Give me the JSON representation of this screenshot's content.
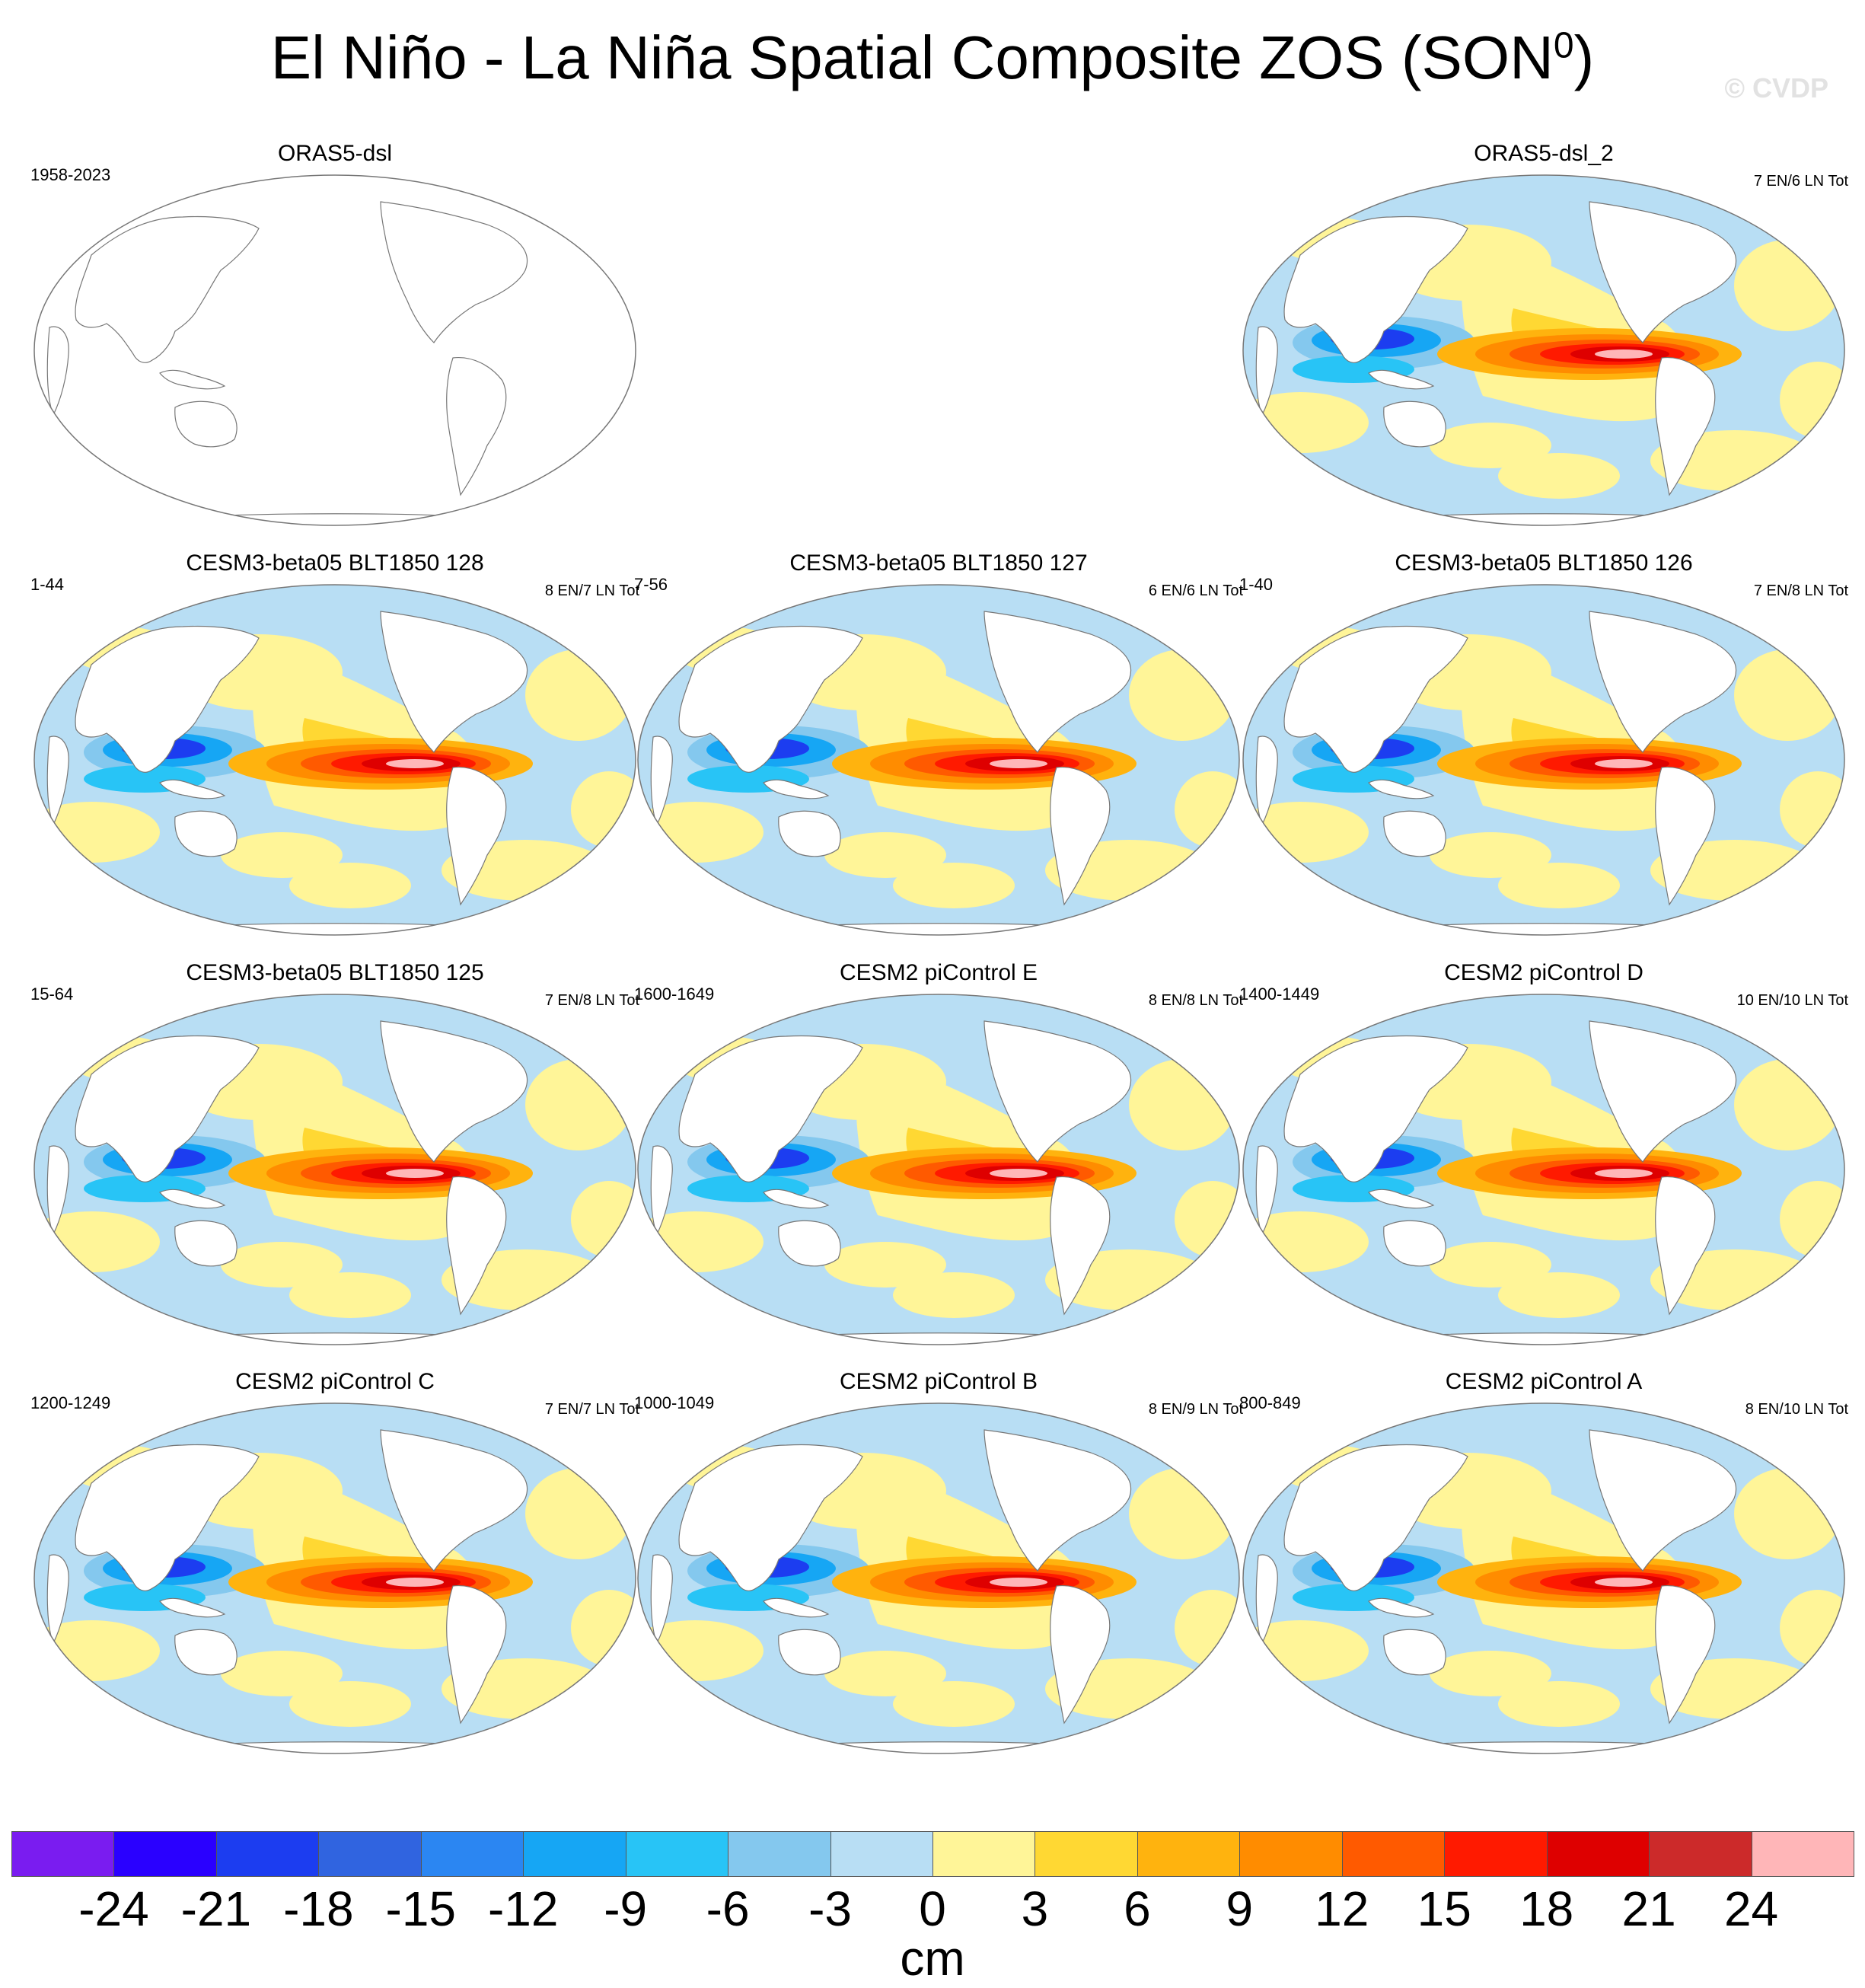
{
  "title": {
    "main": "El Niño - La Niña Spatial Composite ZOS (SON",
    "sup": "0",
    "close": ")"
  },
  "watermark": "© CVDP",
  "colors": {
    "deep_purple": "#7a1cf0",
    "blue1": "#2a00ff",
    "blue2": "#1c3df0",
    "blue3": "#3064e0",
    "blue4": "#2b86f2",
    "blue5": "#16a6f4",
    "blue6": "#28c4f6",
    "blue7": "#84c8ee",
    "lightblue": "#b8def4",
    "lightyellow": "#fff598",
    "yellow": "#ffd833",
    "orange1": "#ffb30e",
    "orange2": "#ff8c00",
    "orange3": "#ff5a00",
    "red1": "#ff1a00",
    "red2": "#de0000",
    "red3": "#cc2a2a",
    "pink": "#ffb6b8",
    "land": "#ffffff",
    "outline": "#777777"
  },
  "panels": [
    {
      "title": "ORAS5-dsl",
      "years": "1958-2023",
      "count": "",
      "filled": false
    },
    {
      "title": "ORAS5-dsl_2",
      "years": "",
      "count": "7 EN/6 LN Tot",
      "filled": true
    },
    {
      "title": "CESM3-beta05 BLT1850 128",
      "years": "1-44",
      "count": "8 EN/7 LN Tot",
      "filled": true
    },
    {
      "title": "CESM3-beta05 BLT1850 127",
      "years": "7-56",
      "count": "6 EN/6 LN Tot",
      "filled": true
    },
    {
      "title": "CESM3-beta05 BLT1850 126",
      "years": "1-40",
      "count": "7 EN/8 LN Tot",
      "filled": true
    },
    {
      "title": "CESM3-beta05 BLT1850 125",
      "years": "15-64",
      "count": "7 EN/8 LN Tot",
      "filled": true
    },
    {
      "title": "CESM2 piControl E",
      "years": "1600-1649",
      "count": "8 EN/8 LN Tot",
      "filled": true
    },
    {
      "title": "CESM2 piControl D",
      "years": "1400-1449",
      "count": "10 EN/10 LN Tot",
      "filled": true
    },
    {
      "title": "CESM2 piControl C",
      "years": "1200-1249",
      "count": "7 EN/7 LN Tot",
      "filled": true
    },
    {
      "title": "CESM2 piControl B",
      "years": "1000-1049",
      "count": "8 EN/9 LN Tot",
      "filled": true
    },
    {
      "title": "CESM2 piControl A",
      "years": "800-849",
      "count": "8 EN/10 LN Tot",
      "filled": true
    }
  ],
  "colorbar": {
    "unit": "cm",
    "ticks": [
      "-24",
      "-21",
      "-18",
      "-15",
      "-12",
      "-9",
      "-6",
      "-3",
      "0",
      "3",
      "6",
      "9",
      "12",
      "15",
      "18",
      "21",
      "24"
    ],
    "colors": [
      "#7a1cf0",
      "#2a00ff",
      "#1c3df0",
      "#3064e0",
      "#2b86f2",
      "#16a6f4",
      "#28c4f6",
      "#84c8ee",
      "#b8def4",
      "#fff598",
      "#ffd833",
      "#ffb30e",
      "#ff8c00",
      "#ff5a00",
      "#ff1a00",
      "#de0000",
      "#cc2a2a",
      "#ffb6b8"
    ]
  }
}
